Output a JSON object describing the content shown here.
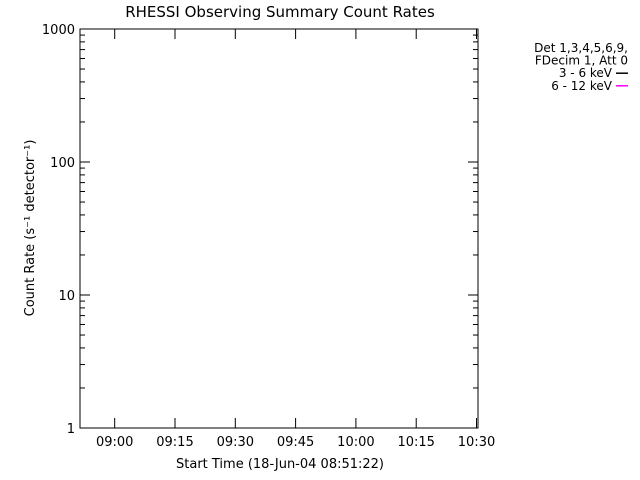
{
  "chart_data": {
    "type": "line",
    "title": "RHESSI Observing Summary Count Rates",
    "xlabel": "Start Time (18-Jun-04 08:51:22)",
    "ylabel": "Count Rate (s⁻¹ detector⁻¹)",
    "x_unit": "minutes after 08:51:22 (tick labels show clock time)",
    "xlim": [
      0,
      99
    ],
    "ylim": [
      1,
      1000
    ],
    "yscale": "log",
    "x_ticks": [
      {
        "value": 8.63,
        "label": "09:00"
      },
      {
        "value": 23.63,
        "label": "09:15"
      },
      {
        "value": 38.63,
        "label": "09:30"
      },
      {
        "value": 53.63,
        "label": "09:45"
      },
      {
        "value": 68.63,
        "label": "10:00"
      },
      {
        "value": 83.63,
        "label": "10:15"
      },
      {
        "value": 98.63,
        "label": "10:30"
      }
    ],
    "y_ticks": [
      {
        "value": 1,
        "label": "1"
      },
      {
        "value": 10,
        "label": "10"
      },
      {
        "value": 100,
        "label": "100"
      },
      {
        "value": 1000,
        "label": "1000"
      }
    ],
    "legend": {
      "placement": "right",
      "header": [
        "Det 1,3,4,5,6,9,",
        "FDecim 1, Att 0"
      ]
    },
    "series": [
      {
        "name": "3 - 6 keV",
        "color": "#000000",
        "x": [
          0,
          1,
          2,
          3,
          4,
          5,
          6,
          7,
          8,
          9,
          10,
          11,
          12,
          13,
          14,
          15,
          16,
          17,
          18,
          19,
          20,
          21,
          22,
          23,
          24,
          25,
          26,
          27,
          28,
          29,
          30,
          31,
          32,
          33,
          34,
          35,
          36,
          37,
          38,
          39,
          40,
          41,
          42,
          43,
          44,
          45,
          46,
          47,
          48,
          49,
          50,
          51,
          52,
          53,
          54,
          55,
          56,
          57,
          58,
          59,
          60,
          61,
          62,
          63,
          64,
          65,
          66,
          67,
          68,
          69,
          70,
          71,
          72,
          73,
          74,
          75,
          76,
          77,
          78,
          79,
          80,
          81,
          82,
          83,
          84,
          85,
          86,
          87,
          88,
          89,
          90,
          91,
          92,
          93,
          94,
          95,
          96,
          97,
          98,
          99
        ],
        "y": [
          null,
          null,
          null,
          null,
          null,
          null,
          null,
          null,
          null,
          null,
          null,
          null,
          null,
          null,
          null,
          null,
          null,
          null,
          null,
          null,
          null,
          null,
          null,
          null,
          null,
          null,
          null,
          null,
          null,
          null,
          null,
          null,
          null,
          null,
          null,
          null,
          null,
          null,
          null,
          null,
          null,
          null,
          null,
          null,
          null,
          null,
          null,
          null,
          null,
          null,
          null,
          null,
          null,
          null,
          null,
          null,
          null,
          null,
          null,
          null,
          null,
          null,
          null,
          null,
          null,
          null,
          null,
          null,
          null,
          null,
          null,
          null,
          null,
          null,
          null,
          null,
          null,
          null,
          null,
          null,
          null,
          null,
          null,
          null,
          null,
          null,
          null,
          null,
          null,
          null,
          null,
          null,
          null,
          null,
          null,
          null,
          null,
          null,
          null,
          null
        ]
      },
      {
        "name": "6 - 12 keV",
        "color": "#ff00ff",
        "x": [
          0,
          1,
          2,
          3,
          4,
          5,
          6,
          7,
          8,
          9,
          10,
          11,
          12,
          13,
          14,
          15,
          16,
          17,
          18,
          19,
          20,
          21,
          22,
          23,
          24,
          25,
          26,
          27,
          28,
          29,
          30,
          31,
          32,
          33,
          34,
          35,
          36,
          37,
          38,
          39,
          40,
          41,
          42,
          43,
          44,
          45,
          46,
          47,
          48,
          49,
          50,
          51,
          52,
          53,
          54,
          55,
          56,
          57,
          58,
          59,
          60,
          61,
          62,
          63,
          64,
          65,
          66,
          67,
          68,
          69,
          70,
          71,
          72,
          73,
          74,
          75,
          76,
          77,
          78,
          79,
          80,
          81,
          82,
          83,
          84,
          85,
          86,
          87,
          88,
          89,
          90,
          91,
          92,
          93,
          94,
          95,
          96,
          97,
          98,
          99
        ],
        "y": [
          null,
          null,
          null,
          null,
          null,
          null,
          null,
          null,
          null,
          null,
          null,
          null,
          null,
          null,
          null,
          null,
          null,
          null,
          null,
          null,
          null,
          null,
          null,
          null,
          null,
          null,
          null,
          null,
          null,
          null,
          null,
          null,
          null,
          null,
          null,
          null,
          null,
          null,
          null,
          null,
          null,
          null,
          null,
          null,
          null,
          null,
          null,
          null,
          null,
          null,
          null,
          null,
          null,
          null,
          null,
          null,
          null,
          null,
          null,
          null,
          null,
          null,
          null,
          null,
          null,
          null,
          null,
          null,
          null,
          null,
          null,
          null,
          null,
          null,
          null,
          null,
          null,
          null,
          null,
          null,
          null,
          null,
          null,
          null,
          null,
          null,
          null,
          null,
          null,
          null,
          null,
          null,
          null,
          null,
          null,
          null,
          null,
          null,
          null,
          null
        ]
      }
    ]
  }
}
